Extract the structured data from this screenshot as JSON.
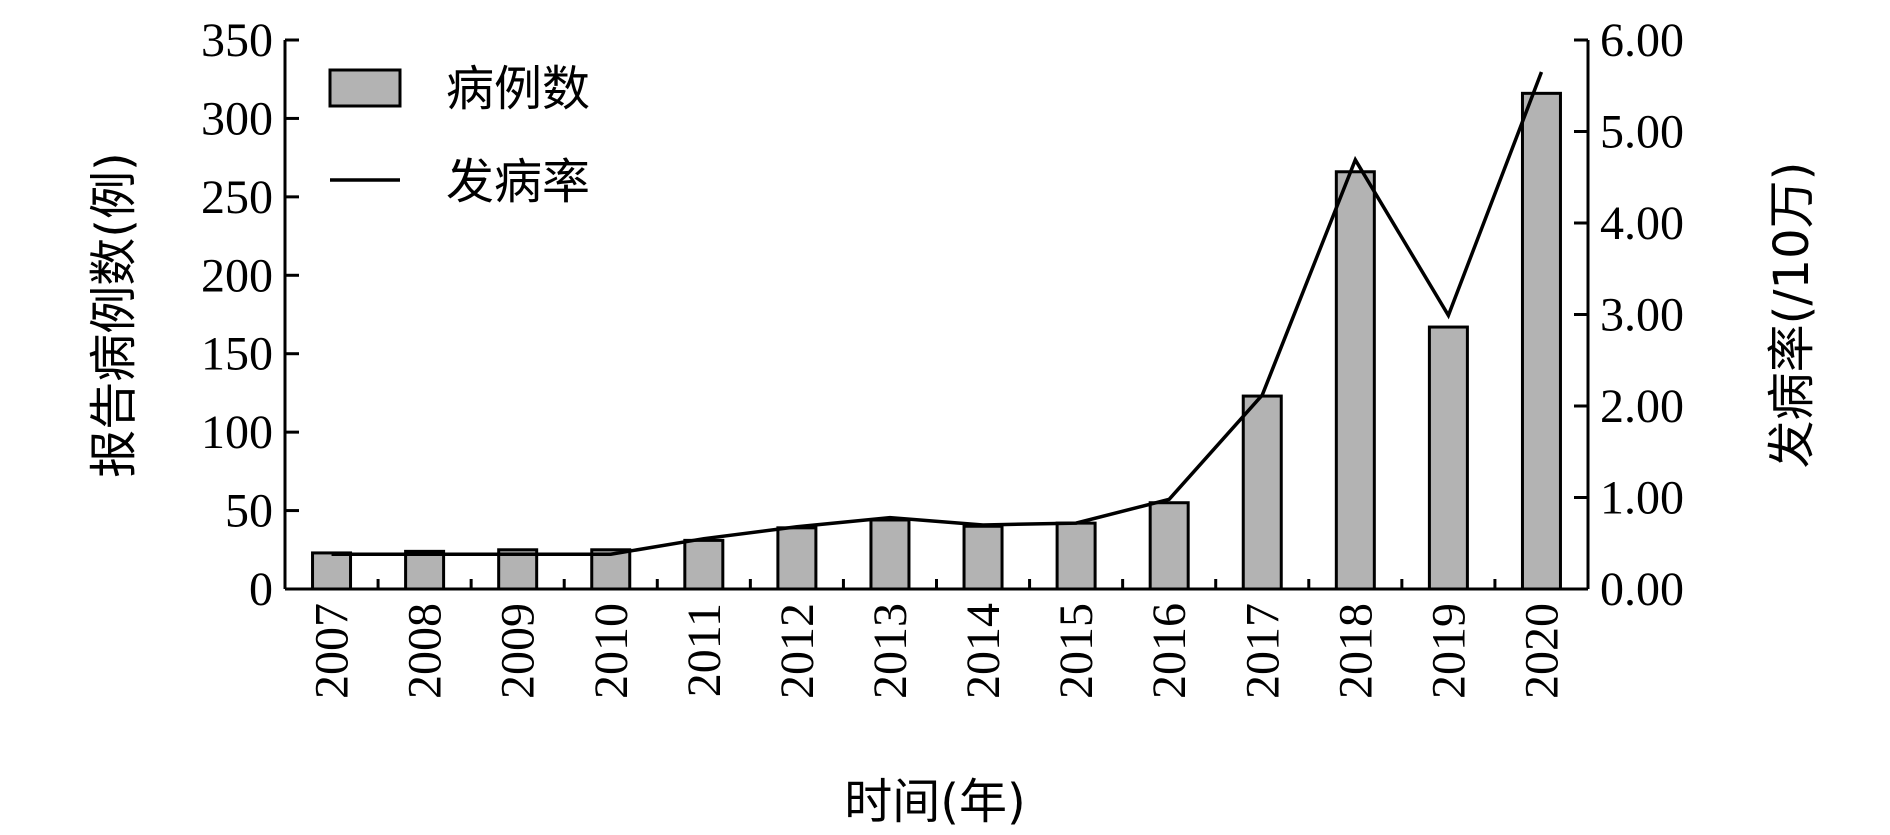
{
  "chart_data": {
    "type": "bar",
    "categories": [
      "2007",
      "2008",
      "2009",
      "2010",
      "2011",
      "2012",
      "2013",
      "2014",
      "2015",
      "2016",
      "2017",
      "2018",
      "2019",
      "2020"
    ],
    "series": [
      {
        "name": "病例数",
        "type": "bar",
        "axis": "left",
        "values": [
          23,
          24,
          25,
          25,
          31,
          39,
          44,
          40,
          42,
          55,
          123,
          266,
          167,
          316
        ]
      },
      {
        "name": "发病率",
        "type": "line",
        "axis": "right",
        "values": [
          0.38,
          0.38,
          0.38,
          0.38,
          0.55,
          0.68,
          0.78,
          0.7,
          0.72,
          0.98,
          2.12,
          4.69,
          2.99,
          5.65
        ]
      }
    ],
    "xlabel": "时间(年)",
    "ylabel": "报告病例数(例)",
    "y2label": "发病率(/10万)",
    "ylim": [
      0,
      350
    ],
    "y2lim": [
      0,
      6
    ],
    "yticks": [
      "0",
      "50",
      "100",
      "150",
      "200",
      "250",
      "300",
      "350"
    ],
    "y2ticks": [
      "0.00",
      "1.00",
      "2.00",
      "3.00",
      "4.00",
      "5.00",
      "6.00"
    ],
    "legend": "top-left",
    "grid": false,
    "colors": {
      "bar_fill": "#b3b3b3",
      "bar_stroke": "#000000",
      "line": "#000000"
    }
  }
}
